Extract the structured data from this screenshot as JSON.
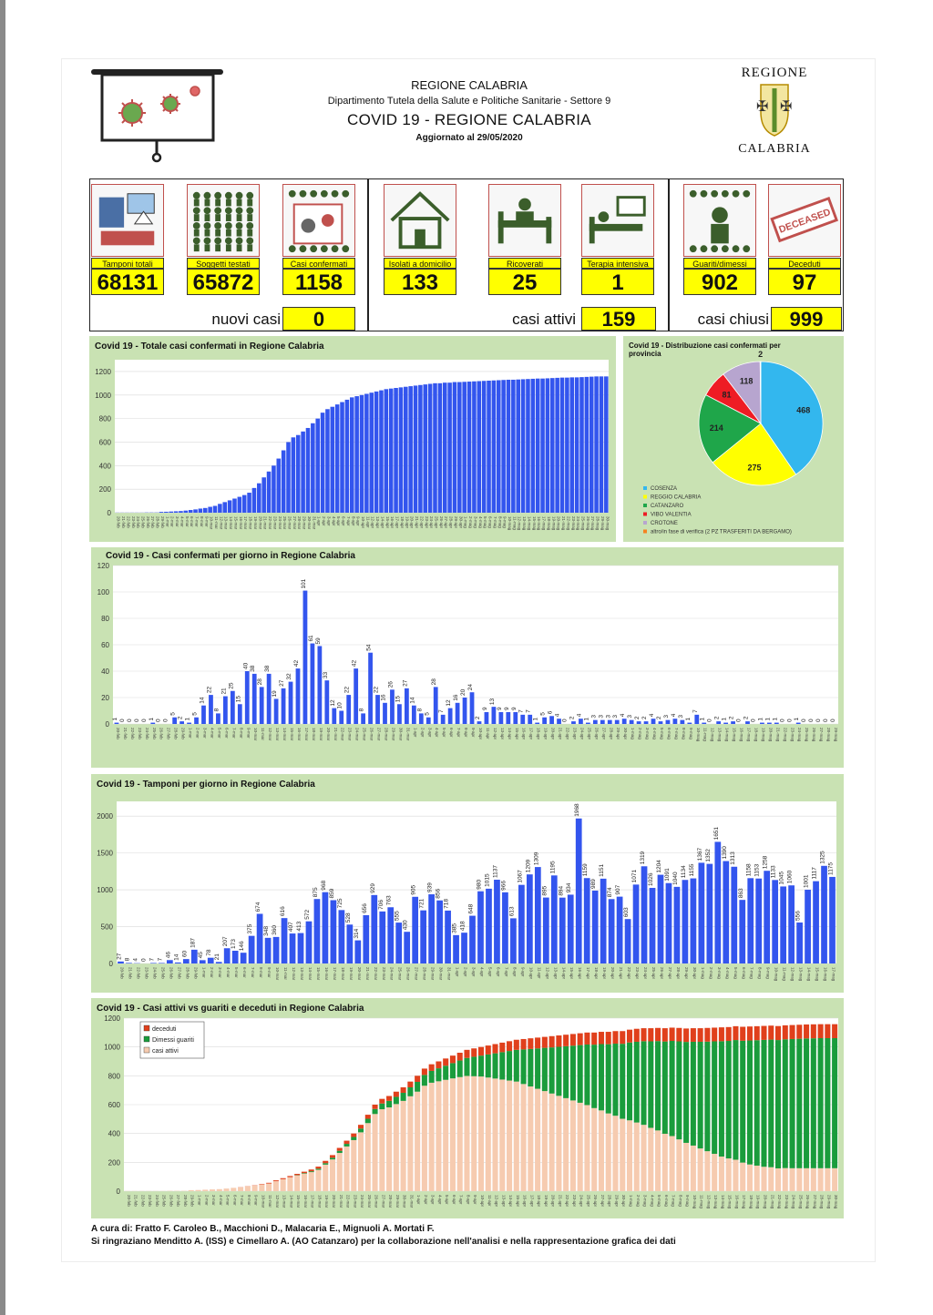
{
  "header": {
    "region": "REGIONE CALABRIA",
    "department": "Dipartimento Tutela della Salute e Politiche Sanitarie - Settore 9",
    "title": "COVID 19 - REGIONE CALABRIA",
    "updated": "Aggiornato al  29/05/2020",
    "logo_top": "REGIONE",
    "logo_bottom": "CALABRIA",
    "stamp_text": "DECEASED"
  },
  "stats": [
    {
      "label": "Tamponi totali",
      "value": "68131",
      "icon": "lab-test-icon"
    },
    {
      "label": "Soggetti testati",
      "value": "65872",
      "icon": "people-grid-icon"
    },
    {
      "label": "Casi confermati",
      "value": "1158",
      "icon": "virus-person-icon"
    },
    {
      "label": "Isolati a domicilio",
      "value": "133",
      "icon": "house-icon"
    },
    {
      "label": "Ricoverati",
      "value": "25",
      "icon": "hospital-bed-icon"
    },
    {
      "label": "Terapia intensiva",
      "value": "1",
      "icon": "intensive-care-icon"
    },
    {
      "label": "Guariti/dimessi",
      "value": "902",
      "icon": "recovered-person-icon"
    },
    {
      "label": "Deceduti",
      "value": "97",
      "icon": "deceased-stamp-icon"
    }
  ],
  "summary": {
    "nuovi_label": "nuovi casi",
    "nuovi_value": "0",
    "attivi_label": "casi attivi",
    "attivi_value": "159",
    "chiusi_label": "casi chiusi",
    "chiusi_value": "999"
  },
  "footer": {
    "line1": "A cura di: Fratto F. Caroleo B., Macchioni D., Malacaria E., Mignuoli A. Mortati F.",
    "line2": "Si ringraziano Menditto A. (ISS) e Cimellaro A. (AO Catanzaro) per la collaborazione nell'analisi e nella rappresentazione grafica dei dati"
  },
  "colors": {
    "bar_blue": "#3355ee",
    "panel_green": "#c9e2b3",
    "highlight_yellow": "#ffff00",
    "active_peach": "#f6cbb0",
    "recovered_green": "#1a9c3c",
    "deceased_red": "#e0401c"
  },
  "chart_data": [
    {
      "type": "bar",
      "title": "Covid 19 - Totale casi confermati in Regione Calabria",
      "ylim": [
        0,
        1300
      ],
      "yticks": [
        0,
        200,
        400,
        600,
        800,
        1000,
        1200
      ],
      "start_date": "20-feb",
      "values": [
        1,
        1,
        1,
        1,
        1,
        1,
        2,
        2,
        2,
        7,
        8,
        10,
        12,
        14,
        18,
        23,
        28,
        35,
        40,
        50,
        58,
        75,
        90,
        105,
        120,
        135,
        150,
        170,
        210,
        250,
        300,
        350,
        400,
        460,
        530,
        600,
        640,
        660,
        690,
        720,
        760,
        800,
        850,
        880,
        900,
        920,
        940,
        960,
        980,
        990,
        1000,
        1010,
        1020,
        1030,
        1040,
        1050,
        1055,
        1060,
        1065,
        1070,
        1075,
        1080,
        1085,
        1090,
        1095,
        1100,
        1100,
        1105,
        1105,
        1110,
        1110,
        1112,
        1114,
        1116,
        1118,
        1120,
        1122,
        1124,
        1126,
        1128,
        1130,
        1130,
        1132,
        1134,
        1136,
        1138,
        1140,
        1140,
        1142,
        1144,
        1146,
        1148,
        1148,
        1150,
        1150,
        1152,
        1154,
        1156,
        1158,
        1158,
        1158
      ]
    },
    {
      "type": "pie",
      "title": "Covid 19 - Distribuzione casi confermati per provincia",
      "slices": [
        {
          "name": "COSENZA",
          "value": 468,
          "color": "#33b7ee"
        },
        {
          "name": "REGGIO CALABRIA",
          "value": 275,
          "color": "#ffff00"
        },
        {
          "name": "CATANZARO",
          "value": 214,
          "color": "#1fa64a"
        },
        {
          "name": "VIBO VALENTIA",
          "value": 81,
          "color": "#ee1c24"
        },
        {
          "name": "CROTONE",
          "value": 118,
          "color": "#b7a5cf"
        },
        {
          "name": "altro/in fase di verifica (2 PZ TRASFERITI DA BERGAMO)",
          "value": 2,
          "color": "#f58220"
        }
      ]
    },
    {
      "type": "bar",
      "title": "Covid 19 - Casi confermati per giorno in Regione Calabria",
      "ylim": [
        0,
        120
      ],
      "yticks": [
        0,
        20,
        40,
        60,
        80,
        100,
        120
      ],
      "start_date": "20-feb",
      "values": [
        1,
        0,
        0,
        0,
        0,
        1,
        0,
        0,
        5,
        2,
        1,
        5,
        14,
        22,
        8,
        21,
        25,
        15,
        40,
        38,
        28,
        38,
        19,
        27,
        32,
        42,
        101,
        61,
        59,
        33,
        12,
        10,
        22,
        42,
        8,
        54,
        22,
        16,
        26,
        15,
        27,
        14,
        8,
        5,
        28,
        7,
        12,
        16,
        20,
        24,
        2,
        9,
        13,
        9,
        9,
        9,
        7,
        7,
        1,
        5,
        6,
        4,
        0,
        2,
        4,
        1,
        3,
        3,
        3,
        3,
        4,
        3,
        2,
        2,
        4,
        2,
        3,
        4,
        3,
        1,
        7,
        1,
        0,
        2,
        1,
        2,
        0,
        2,
        0,
        1,
        1,
        1,
        0,
        0,
        1,
        0,
        0,
        0,
        0,
        0
      ]
    },
    {
      "type": "bar",
      "title": "Covid 19 - Tamponi per giorno in Regione Calabria",
      "ylim": [
        0,
        2200
      ],
      "yticks": [
        0,
        500,
        1000,
        1500,
        2000
      ],
      "start_date": "20-feb",
      "values": [
        27,
        8,
        4,
        0,
        7,
        7,
        46,
        14,
        60,
        187,
        45,
        78,
        21,
        207,
        173,
        146,
        375,
        674,
        348,
        360,
        616,
        407,
        413,
        572,
        875,
        968,
        859,
        725,
        528,
        314,
        656,
        929,
        706,
        763,
        555,
        430,
        905,
        721,
        939,
        856,
        718,
        385,
        418,
        648,
        980,
        1015,
        1137,
        966,
        613,
        1067,
        1209,
        1309,
        895,
        1195,
        894,
        934,
        1968,
        1159,
        989,
        1151,
        874,
        907,
        603,
        1071,
        1319,
        1026,
        1204,
        1091,
        1040,
        1134,
        1155,
        1367,
        1352,
        1651,
        1390,
        1313,
        863,
        1158,
        1153,
        1258,
        1133,
        1045,
        1060,
        556,
        1001,
        1117,
        1325,
        1175
      ]
    },
    {
      "type": "bar",
      "stacked": true,
      "title": "Covid 19 - Casi attivi vs guariti e deceduti in Regione Calabria",
      "ylim": [
        0,
        1200
      ],
      "yticks": [
        0,
        200,
        400,
        600,
        800,
        1000,
        1200
      ],
      "start_date": "20-feb",
      "legend_placement": "top-left",
      "series": [
        {
          "name": "deceduti",
          "color": "#e0401c",
          "values": [
            0,
            0,
            0,
            0,
            0,
            0,
            0,
            0,
            0,
            0,
            0,
            0,
            0,
            0,
            0,
            0,
            1,
            1,
            2,
            3,
            5,
            6,
            7,
            8,
            9,
            10,
            12,
            14,
            16,
            18,
            20,
            22,
            24,
            26,
            28,
            30,
            32,
            34,
            36,
            38,
            40,
            42,
            44,
            46,
            48,
            50,
            52,
            54,
            56,
            58,
            60,
            62,
            64,
            66,
            68,
            70,
            72,
            74,
            75,
            76,
            78,
            79,
            80,
            81,
            82,
            83,
            84,
            85,
            86,
            87,
            88,
            89,
            90,
            90,
            91,
            91,
            92,
            92,
            93,
            93,
            94,
            94,
            95,
            95,
            96,
            96,
            96,
            97,
            97,
            97,
            97,
            97,
            97,
            97,
            97,
            97,
            97,
            97,
            97,
            97,
            97
          ]
        },
        {
          "name": "Dimessi guariti",
          "values": [
            0,
            0,
            0,
            0,
            0,
            0,
            0,
            0,
            0,
            0,
            0,
            0,
            0,
            0,
            0,
            0,
            0,
            0,
            0,
            0,
            0,
            0,
            0,
            0,
            2,
            4,
            6,
            8,
            10,
            12,
            15,
            18,
            22,
            26,
            30,
            35,
            40,
            45,
            50,
            56,
            62,
            68,
            75,
            82,
            90,
            98,
            106,
            115,
            125,
            135,
            145,
            160,
            175,
            190,
            205,
            220,
            240,
            260,
            280,
            300,
            320,
            340,
            360,
            380,
            400,
            420,
            440,
            460,
            480,
            500,
            520,
            540,
            560,
            580,
            600,
            620,
            640,
            660,
            680,
            700,
            720,
            740,
            760,
            780,
            800,
            815,
            830,
            845,
            860,
            870,
            880,
            885,
            890,
            893,
            896,
            898,
            900,
            901,
            902,
            902,
            902
          ],
          "color": "#1a9c3c"
        },
        {
          "name": "casi attivi",
          "color": "#f6cbb0",
          "values": [
            1,
            1,
            1,
            1,
            1,
            1,
            2,
            2,
            2,
            7,
            8,
            10,
            12,
            14,
            18,
            23,
            27,
            34,
            38,
            47,
            53,
            69,
            83,
            97,
            109,
            121,
            132,
            148,
            184,
            220,
            265,
            310,
            354,
            408,
            472,
            535,
            568,
            581,
            604,
            626,
            658,
            690,
            731,
            752,
            762,
            772,
            782,
            791,
            799,
            797,
            795,
            788,
            781,
            774,
            767,
            760,
            743,
            726,
            710,
            694,
            677,
            661,
            645,
            629,
            613,
            597,
            576,
            560,
            539,
            523,
            502,
            491,
            476,
            460,
            439,
            421,
            398,
            382,
            359,
            335,
            316,
            296,
            277,
            259,
            240,
            227,
            218,
            198,
            185,
            177,
            169,
            166,
            158,
            160,
            159,
            159,
            159,
            159,
            159,
            159,
            159
          ]
        }
      ]
    }
  ]
}
